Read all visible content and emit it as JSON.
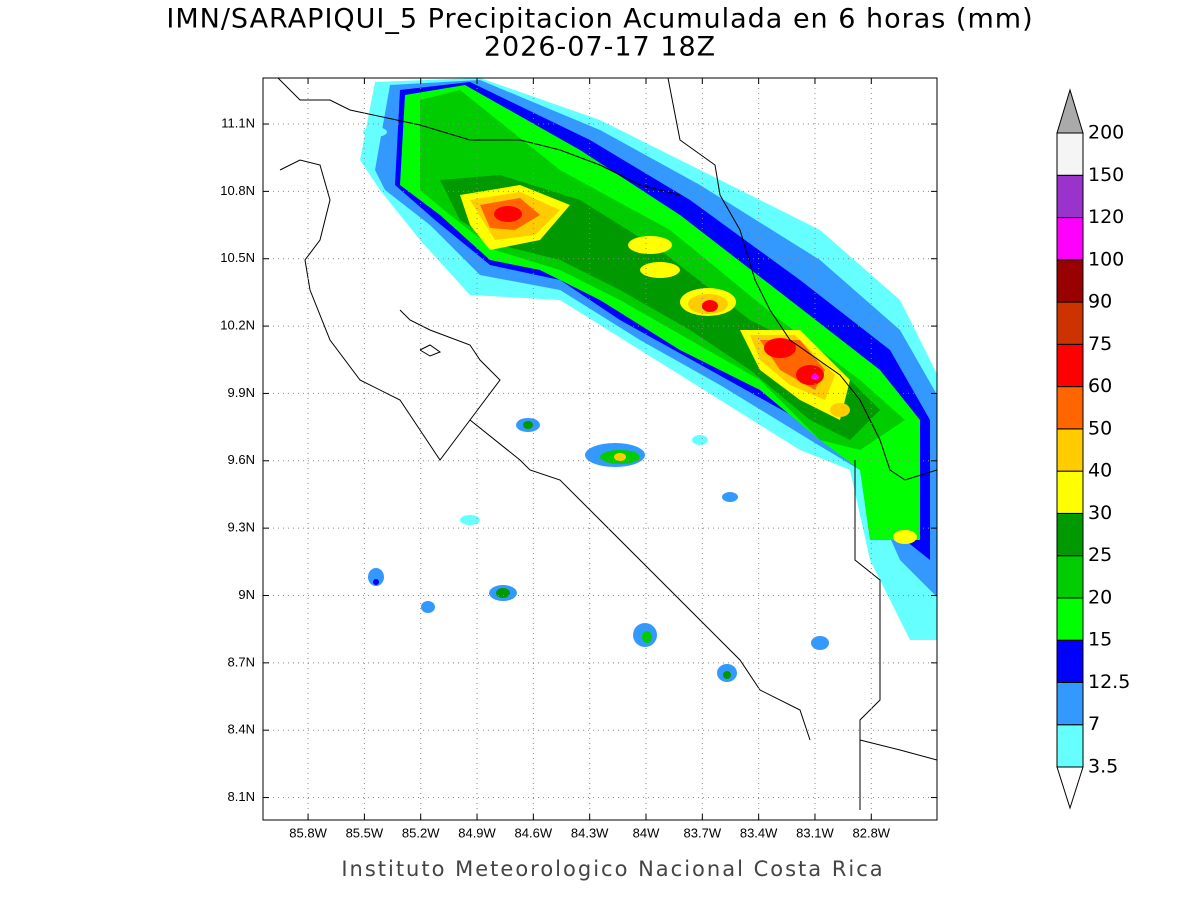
{
  "map": {
    "title": "IMN/SARAPIQUI_5 Precipitacion Acumulada en 6 horas (mm)",
    "subtitle": "2026-07-17 18Z",
    "footer": "Instituto Meteorologico Nacional Costa Rica",
    "xlim": [
      -86.04,
      -82.45
    ],
    "ylim": [
      8.0,
      11.305
    ],
    "lon_ticks": [
      {
        "value": -85.8,
        "label": "85.8W"
      },
      {
        "value": -85.5,
        "label": "85.5W"
      },
      {
        "value": -85.2,
        "label": "85.2W"
      },
      {
        "value": -84.9,
        "label": "84.9W"
      },
      {
        "value": -84.6,
        "label": "84.6W"
      },
      {
        "value": -84.3,
        "label": "84.3W"
      },
      {
        "value": -84.0,
        "label": "84W"
      },
      {
        "value": -83.7,
        "label": "83.7W"
      },
      {
        "value": -83.4,
        "label": "83.4W"
      },
      {
        "value": -83.1,
        "label": "83.1W"
      },
      {
        "value": -82.8,
        "label": "82.8W"
      }
    ],
    "lat_ticks": [
      {
        "value": 11.1,
        "label": "11.1N"
      },
      {
        "value": 10.8,
        "label": "10.8N"
      },
      {
        "value": 10.5,
        "label": "10.5N"
      },
      {
        "value": 10.2,
        "label": "10.2N"
      },
      {
        "value": 9.9,
        "label": "9.9N"
      },
      {
        "value": 9.6,
        "label": "9.6N"
      },
      {
        "value": 9.3,
        "label": "9.3N"
      },
      {
        "value": 9.0,
        "label": "9N"
      },
      {
        "value": 8.7,
        "label": "8.7N"
      },
      {
        "value": 8.4,
        "label": "8.4N"
      },
      {
        "value": 8.1,
        "label": "8.1N"
      }
    ],
    "colorbar": {
      "levels": [
        3.5,
        7,
        12.5,
        15,
        20,
        25,
        30,
        40,
        50,
        60,
        75,
        90,
        100,
        120,
        150,
        200
      ],
      "colors": [
        "#66ffff",
        "#3399ff",
        "#0000ff",
        "#00ff00",
        "#00cc00",
        "#009900",
        "#ffff00",
        "#ffcc00",
        "#ff6600",
        "#ff0000",
        "#cc3300",
        "#990000",
        "#ff00ff",
        "#9933cc",
        "#f5f5f5",
        "#aaaaaa"
      ]
    }
  }
}
